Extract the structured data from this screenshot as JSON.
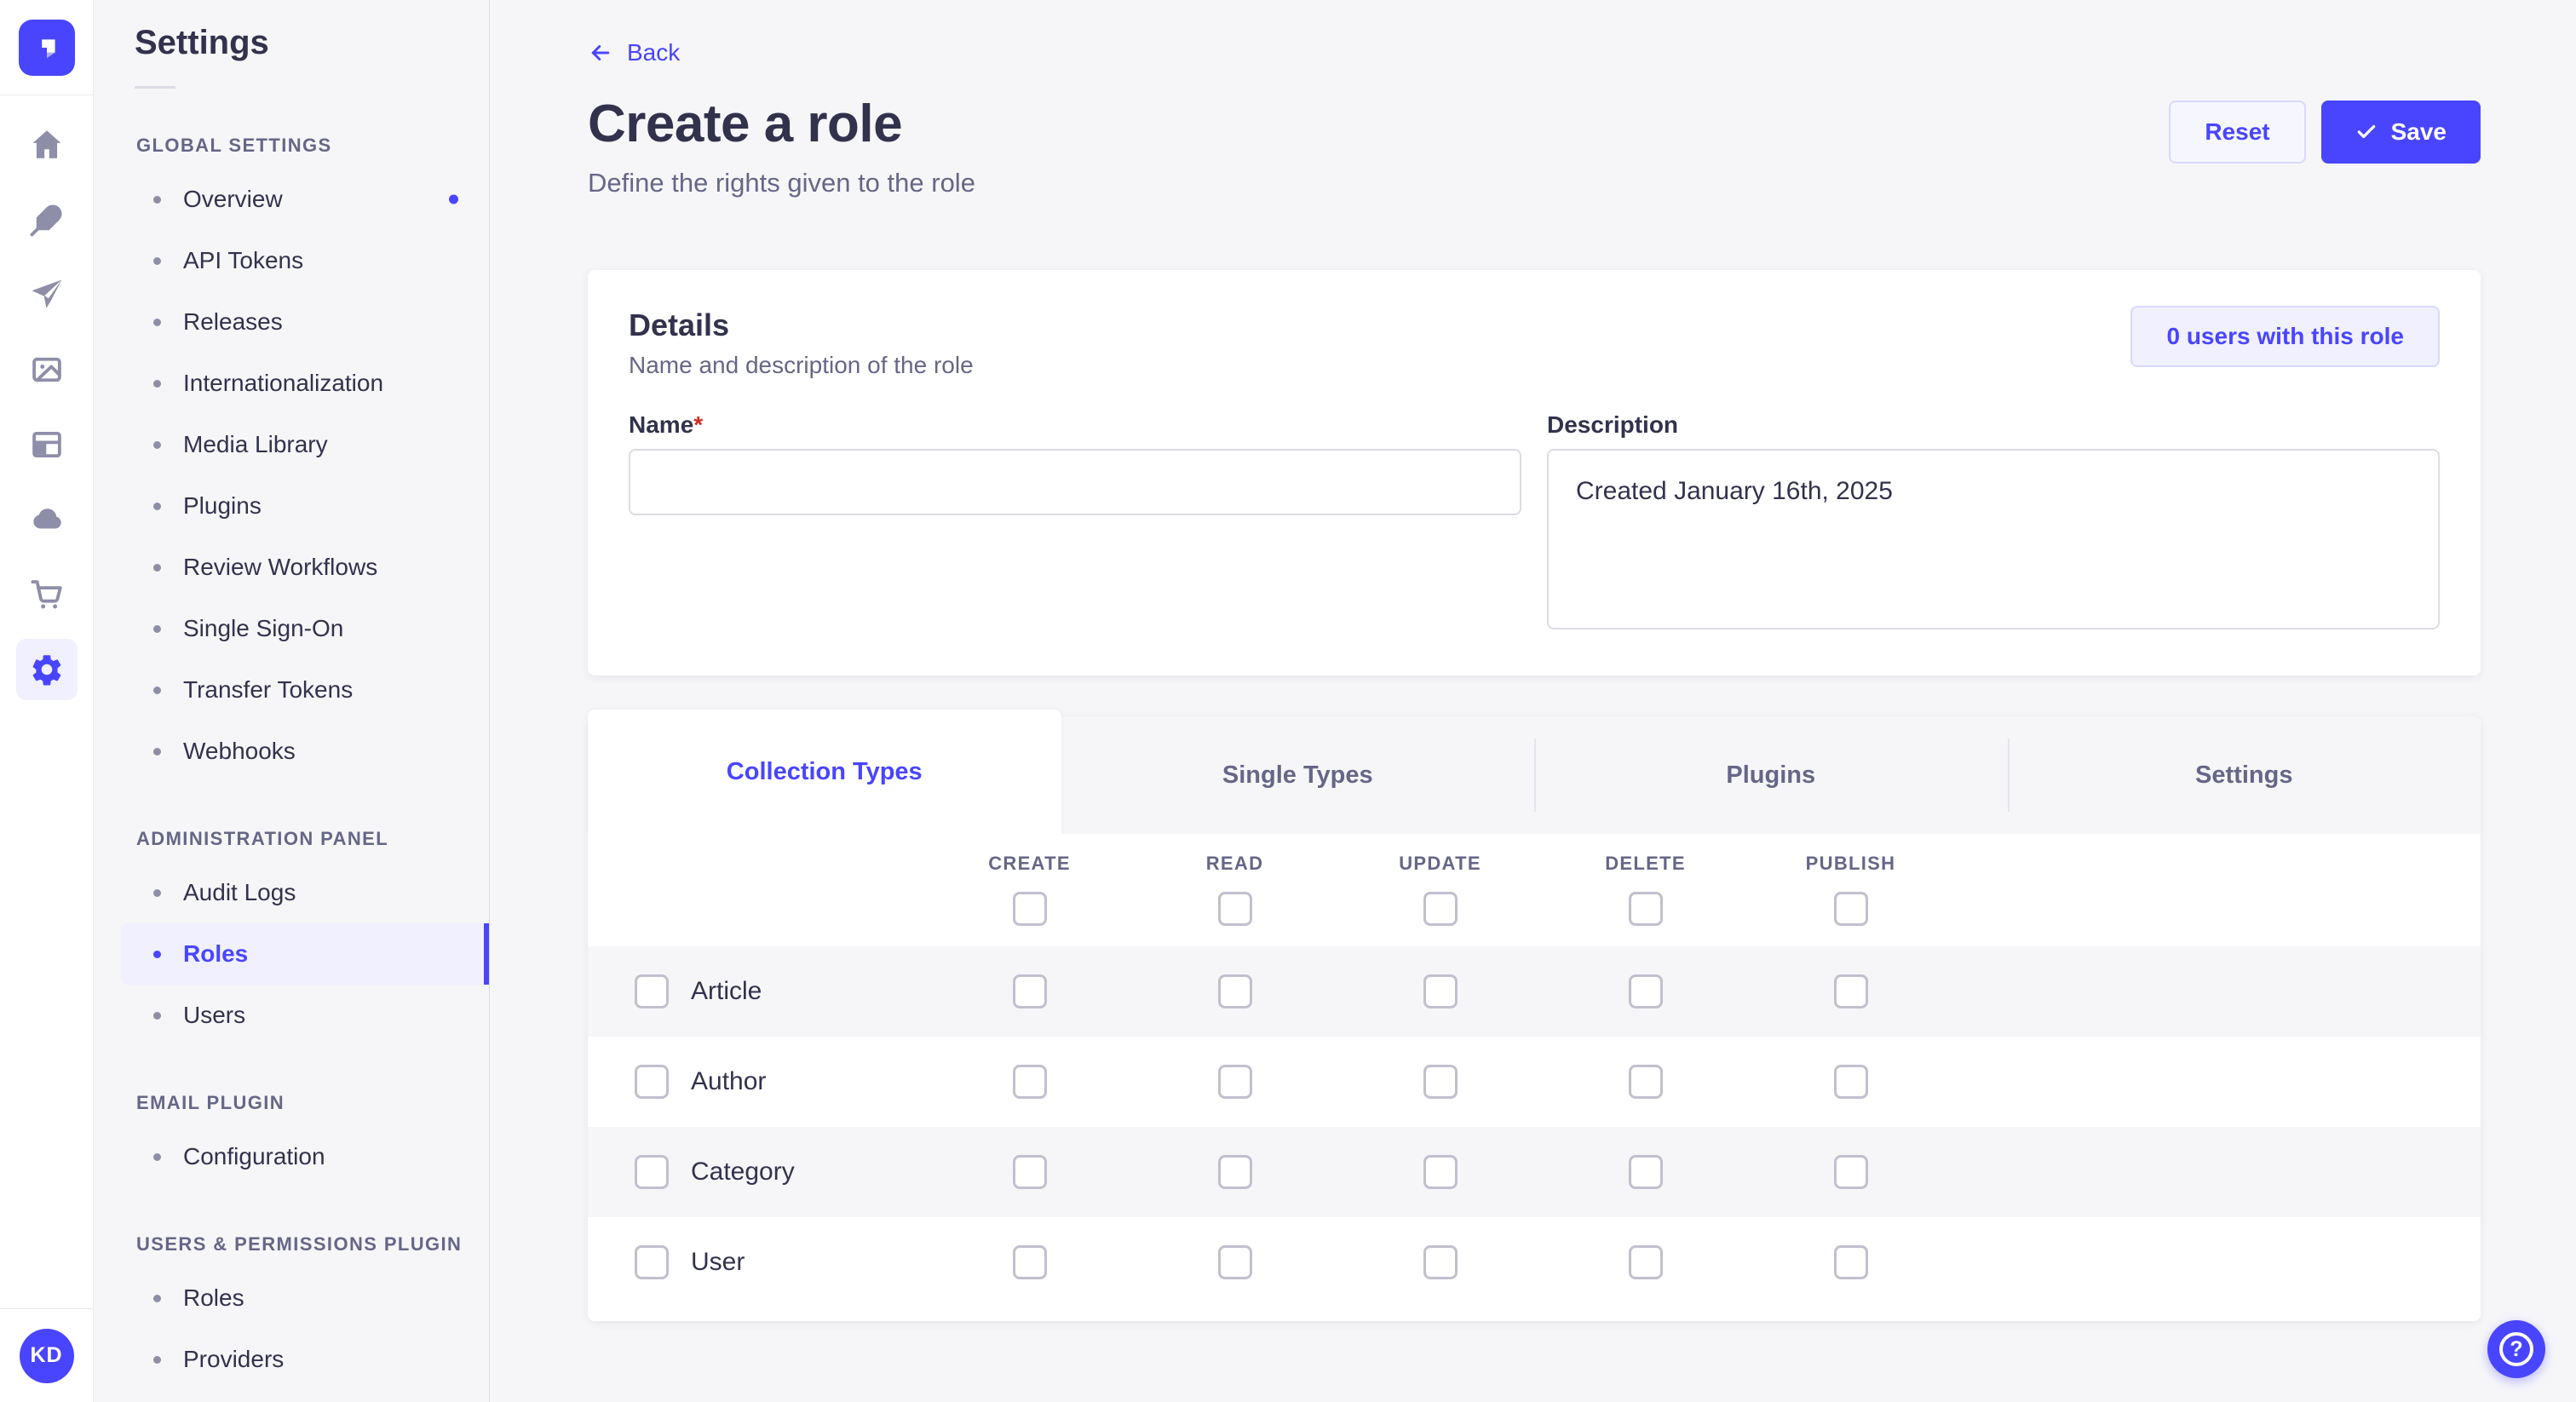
{
  "rail": {
    "icons": [
      "strapi-logo",
      "home",
      "content-feather",
      "send-plane",
      "media-library",
      "content-manager-layout",
      "cloud",
      "marketplace-cart",
      "settings-gear"
    ],
    "active_icon": "settings-gear",
    "avatar_initials": "KD"
  },
  "sidebar": {
    "title": "Settings",
    "sections": [
      {
        "label": "GLOBAL SETTINGS",
        "items": [
          {
            "label": "Overview",
            "notification": true
          },
          {
            "label": "API Tokens"
          },
          {
            "label": "Releases"
          },
          {
            "label": "Internationalization"
          },
          {
            "label": "Media Library"
          },
          {
            "label": "Plugins"
          },
          {
            "label": "Review Workflows"
          },
          {
            "label": "Single Sign-On"
          },
          {
            "label": "Transfer Tokens"
          },
          {
            "label": "Webhooks"
          }
        ]
      },
      {
        "label": "ADMINISTRATION PANEL",
        "items": [
          {
            "label": "Audit Logs"
          },
          {
            "label": "Roles",
            "active": true
          },
          {
            "label": "Users"
          }
        ]
      },
      {
        "label": "EMAIL PLUGIN",
        "items": [
          {
            "label": "Configuration"
          }
        ]
      },
      {
        "label": "USERS & PERMISSIONS PLUGIN",
        "items": [
          {
            "label": "Roles"
          },
          {
            "label": "Providers"
          }
        ]
      }
    ]
  },
  "header": {
    "back": "Back",
    "title": "Create a role",
    "subtitle": "Define the rights given to the role",
    "reset_label": "Reset",
    "save_label": "Save"
  },
  "details": {
    "title": "Details",
    "subtitle": "Name and description of the role",
    "users_badge": "0 users with this role",
    "name_label": "Name",
    "required_mark": "*",
    "name_value": "",
    "description_label": "Description",
    "description_value": "Created January 16th, 2025"
  },
  "permissions": {
    "tabs": [
      {
        "label": "Collection Types",
        "active": true
      },
      {
        "label": "Single Types"
      },
      {
        "label": "Plugins"
      },
      {
        "label": "Settings"
      }
    ],
    "columns": [
      "CREATE",
      "READ",
      "UPDATE",
      "DELETE",
      "PUBLISH"
    ],
    "rows": [
      {
        "label": "Article"
      },
      {
        "label": "Author"
      },
      {
        "label": "Category"
      },
      {
        "label": "User"
      }
    ],
    "all_unchecked": true
  },
  "help": {
    "icon": "?"
  },
  "colors": {
    "primary": "#4945ff",
    "primary_light": "#f0f0ff",
    "primary_border": "#d9d8ff",
    "text": "#32324d",
    "text_muted": "#666687",
    "page_bg": "#f6f6f9",
    "required": "#d02b20"
  }
}
